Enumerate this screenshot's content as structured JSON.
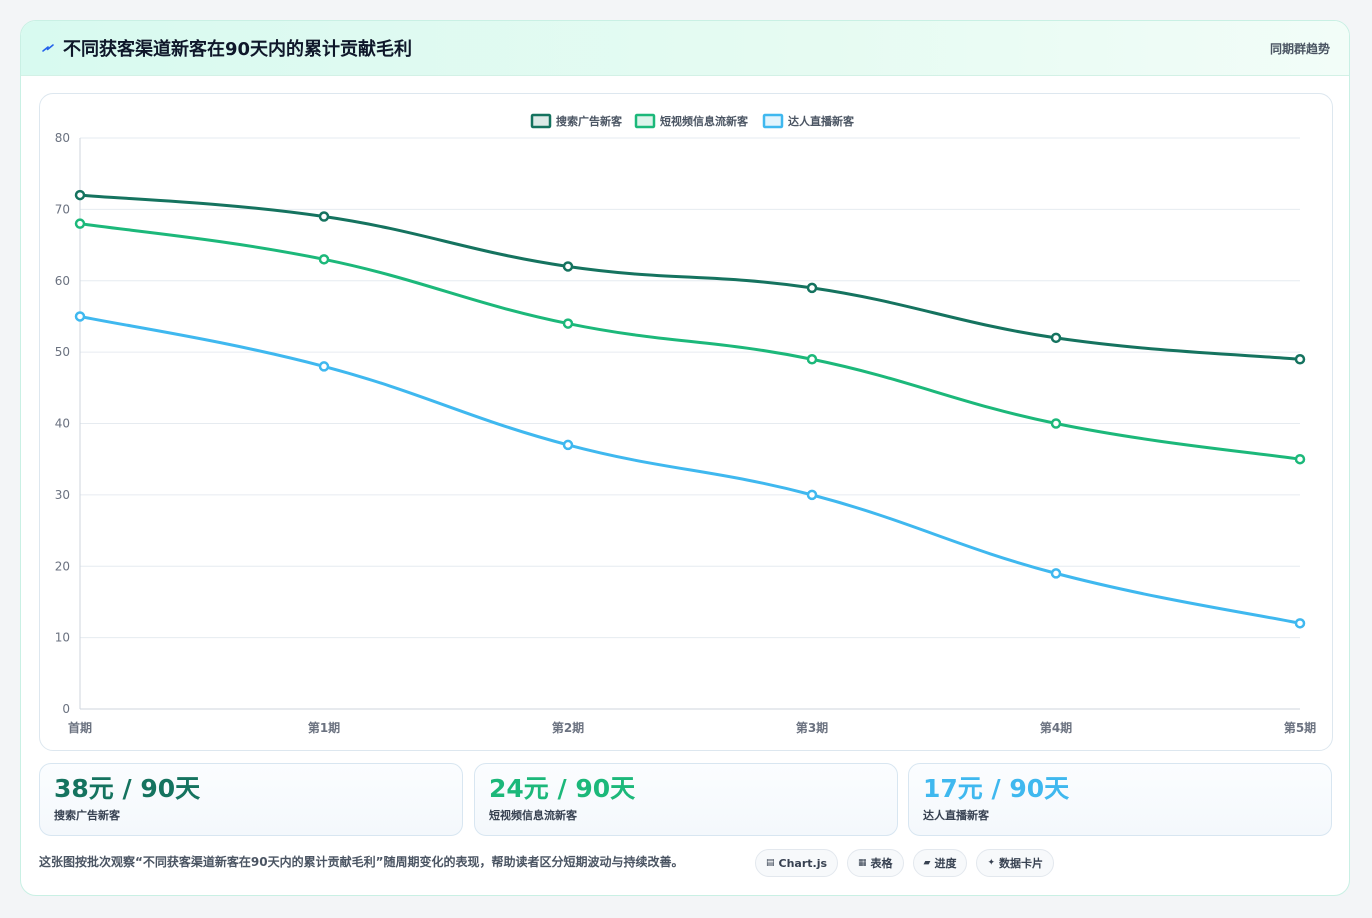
{
  "header": {
    "title": "不同获客渠道新客在90天内的累计贡献毛利",
    "right_label": "同期群趋势"
  },
  "colors": {
    "series": [
      "#15735f",
      "#1cb87a",
      "#3fb8ef"
    ],
    "grid": "#e6ebf0",
    "axis_text": "#6b7280"
  },
  "chart_data": {
    "type": "line",
    "title": "",
    "xlabel": "",
    "ylabel": "",
    "categories": [
      "首期",
      "第1期",
      "第2期",
      "第3期",
      "第4期",
      "第5期"
    ],
    "ylim": [
      0,
      80
    ],
    "yticks": [
      0,
      10,
      20,
      30,
      40,
      50,
      60,
      70,
      80
    ],
    "grid": true,
    "legend_position": "top-center",
    "series": [
      {
        "name": "搜索广告新客",
        "values": [
          72,
          69,
          62,
          59,
          52,
          49
        ]
      },
      {
        "name": "短视频信息流新客",
        "values": [
          68,
          63,
          54,
          49,
          40,
          35
        ]
      },
      {
        "name": "达人直播新客",
        "values": [
          55,
          48,
          37,
          30,
          19,
          12
        ]
      }
    ]
  },
  "stats": [
    {
      "value": "38元 / 90天",
      "label": "搜索广告新客",
      "color": "#15735f"
    },
    {
      "value": "24元 / 90天",
      "label": "短视频信息流新客",
      "color": "#1cb87a"
    },
    {
      "value": "17元 / 90天",
      "label": "达人直播新客",
      "color": "#3fb8ef"
    }
  ],
  "footer": {
    "note": "这张图按批次观察“不同获客渠道新客在90天内的累计贡献毛利”随周期变化的表现，帮助读者区分短期波动与持续改善。",
    "tags": [
      {
        "icon": "▤",
        "icon_name": "chart-js-icon",
        "label": "Chart.js"
      },
      {
        "icon": "▦",
        "icon_name": "table-icon",
        "label": "表格"
      },
      {
        "icon": "▰",
        "icon_name": "progress-icon",
        "label": "进度"
      },
      {
        "icon": "✦",
        "icon_name": "data-card-icon",
        "label": "数据卡片"
      }
    ]
  }
}
